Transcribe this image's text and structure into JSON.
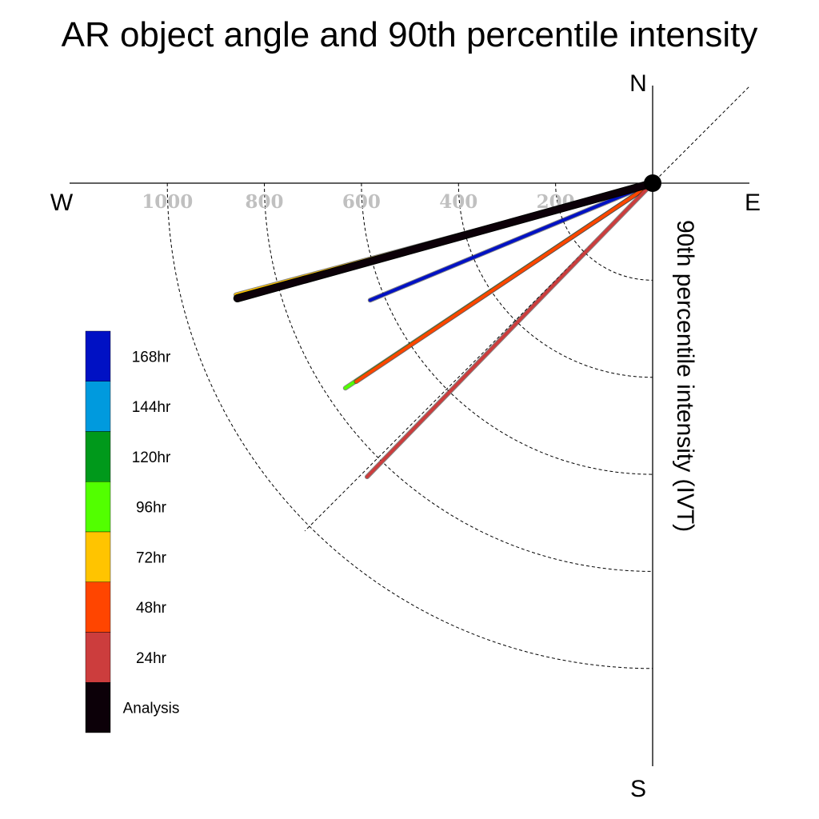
{
  "chart_data": {
    "type": "polar-vector",
    "title": "AR object angle and 90th percentile intensity",
    "radial_label": "90th percentile intensity (IVT)",
    "compass": {
      "north": "N",
      "south": "S",
      "east": "E",
      "west": "W"
    },
    "radial_ticks": [
      200,
      400,
      600,
      800,
      1000
    ],
    "radial_tick_labels": [
      "200",
      "400",
      "600",
      "800",
      "1000"
    ],
    "radial_max": 1200,
    "series": [
      {
        "name": "Analysis",
        "color": "#0c0008",
        "angle_deg": 195.5,
        "intensity": 888
      },
      {
        "name": "24hr",
        "color": "#cc3d3d",
        "angle_deg": 225.8,
        "intensity": 844
      },
      {
        "name": "48hr",
        "color": "#ff4500",
        "angle_deg": 213.8,
        "intensity": 735
      },
      {
        "name": "72hr",
        "color": "#ffc400",
        "angle_deg": 195.0,
        "intensity": 889
      },
      {
        "name": "96hr",
        "color": "#52ff00",
        "angle_deg": 213.7,
        "intensity": 761
      },
      {
        "name": "120hr",
        "color": "#00991b",
        "angle_deg": 195.5,
        "intensity": 820
      },
      {
        "name": "144hr",
        "color": "#009ade",
        "angle_deg": 195.5,
        "intensity": 820
      },
      {
        "name": "168hr",
        "color": "#0011c4",
        "angle_deg": 202.5,
        "intensity": 630
      }
    ],
    "legend_order": [
      "168hr",
      "144hr",
      "120hr",
      "96hr",
      "72hr",
      "48hr",
      "24hr",
      "Analysis"
    ]
  }
}
